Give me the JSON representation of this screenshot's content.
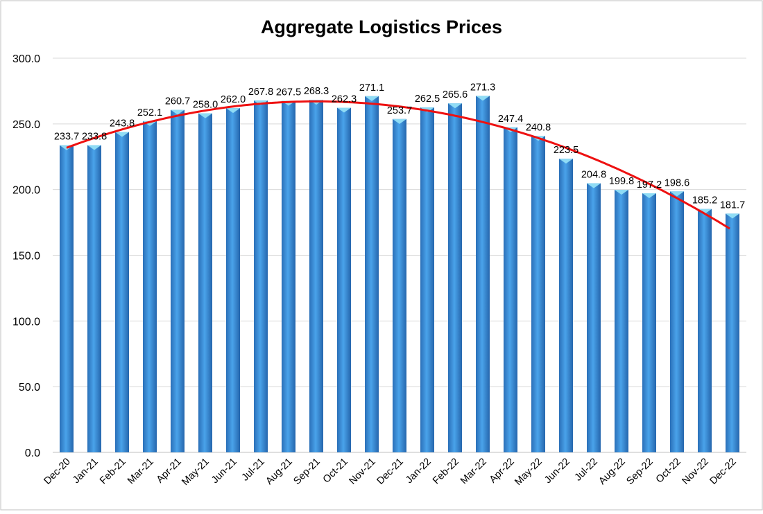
{
  "chart_data": {
    "type": "bar",
    "title": "Aggregate Logistics Prices",
    "xlabel": "",
    "ylabel": "",
    "ylim": [
      0,
      300
    ],
    "yticks": [
      "0.0",
      "50.0",
      "100.0",
      "150.0",
      "200.0",
      "250.0",
      "300.0"
    ],
    "grid": true,
    "trendline": "polynomial (order 2)",
    "categories": [
      "Dec-20",
      "Jan-21",
      "Feb-21",
      "Mar-21",
      "Apr-21",
      "May-21",
      "Jun-21",
      "Jul-21",
      "Aug-21",
      "Sep-21",
      "Oct-21",
      "Nov-21",
      "Dec-21",
      "Jan-22",
      "Feb-22",
      "Mar-22",
      "Apr-22",
      "May-22",
      "Jun-22",
      "Jul-22",
      "Aug-22",
      "Sep-22",
      "Oct-22",
      "Nov-22",
      "Dec-22"
    ],
    "values": [
      233.7,
      233.8,
      243.8,
      252.1,
      260.7,
      258.0,
      262.0,
      267.8,
      267.5,
      268.3,
      262.3,
      271.1,
      253.7,
      262.5,
      265.6,
      271.3,
      247.4,
      240.8,
      223.5,
      204.8,
      199.8,
      197.2,
      198.6,
      185.2,
      181.7
    ],
    "colors": {
      "bar": "#3a8fd9",
      "bar_top": "#8fdcf5",
      "trend": "#ee1111",
      "grid": "#d9d9d9"
    }
  }
}
